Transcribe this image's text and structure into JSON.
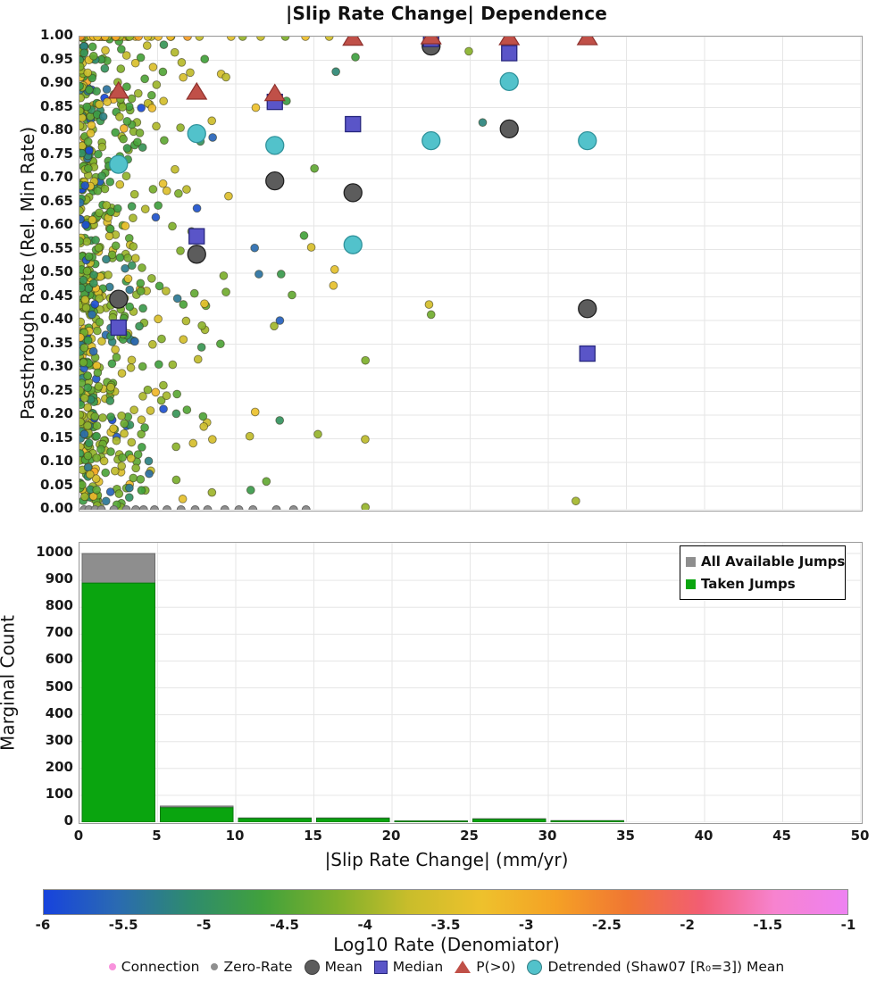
{
  "title": "|Slip Rate Change| Dependence",
  "chart_data": [
    {
      "type": "scatter",
      "title": "|Slip Rate Change| Dependence",
      "xlabel": "|Slip Rate Change| (mm/yr)",
      "ylabel": "Passthrough Rate (Rel. Min Rate)",
      "xlim": [
        0,
        50
      ],
      "ylim": [
        0.0,
        1.0
      ],
      "x_ticks": [
        0,
        5,
        10,
        15,
        20,
        25,
        30,
        35,
        40,
        45,
        50
      ],
      "y_tick_labels": [
        "0.00",
        "0.05",
        "0.10",
        "0.15",
        "0.20",
        "0.25",
        "0.30",
        "0.35",
        "0.40",
        "0.45",
        "0.50",
        "0.55",
        "0.60",
        "0.65",
        "0.70",
        "0.75",
        "0.80",
        "0.85",
        "0.90",
        "0.95",
        "1.00"
      ],
      "grid": true,
      "bin_centers": [
        2.5,
        7.5,
        12.5,
        17.5,
        22.5,
        27.5,
        32.5
      ],
      "series": [
        {
          "name": "Mean",
          "marker": "circle",
          "fill": "#5c5c5c",
          "stroke": "#1f1f1f",
          "x": [
            2.5,
            7.5,
            12.5,
            17.5,
            22.5,
            27.5,
            32.5
          ],
          "y": [
            0.445,
            0.54,
            0.695,
            0.67,
            0.98,
            0.805,
            0.425
          ]
        },
        {
          "name": "Median",
          "marker": "square",
          "fill": "#5a55c8",
          "stroke": "#26267e",
          "x": [
            2.5,
            7.5,
            12.5,
            17.5,
            22.5,
            27.5,
            32.5
          ],
          "y": [
            0.385,
            0.578,
            0.862,
            0.815,
            0.995,
            0.965,
            0.33
          ]
        },
        {
          "name": "P(>0)",
          "marker": "triangle",
          "fill": "#c05048",
          "stroke": "#8e302c",
          "x": [
            2.5,
            7.5,
            12.5,
            17.5,
            22.5,
            27.5,
            32.5
          ],
          "y": [
            0.885,
            0.883,
            0.88,
            0.997,
            1.0,
            0.998,
            0.998
          ]
        },
        {
          "name": "Detrended (Shaw07 [R₀=3]) Mean",
          "marker": "circle",
          "fill": "#52c2cb",
          "stroke": "#2f929b",
          "x": [
            2.5,
            7.5,
            12.5,
            17.5,
            22.5,
            27.5,
            32.5
          ],
          "y": [
            0.73,
            0.795,
            0.77,
            0.56,
            0.78,
            0.905,
            0.78
          ]
        },
        {
          "name": "Zero-Rate",
          "marker": "small-circle",
          "fill": "#8f8f8f",
          "stroke": "#636363",
          "x": [
            0.3,
            0.6,
            1.0,
            1.4,
            2.2,
            3.0,
            3.6,
            4.1,
            4.8,
            5.6,
            6.5,
            7.4,
            8.2,
            9.3,
            10.2,
            11.1,
            12.6,
            13.7,
            14.5
          ],
          "y": [
            0,
            0,
            0,
            0,
            0,
            0,
            0,
            0,
            0,
            0,
            0,
            0,
            0,
            0,
            0,
            0,
            0,
            0,
            0
          ]
        }
      ],
      "background_scatter": {
        "comment": "dense cloud of connection points, colored by Log10 Rate via colorbar; generated deterministically",
        "seed": 7,
        "dot_radius": 4.4,
        "main_count": 520,
        "edge_count": 150,
        "top_row_count": 46,
        "x_scale_main": 2.3,
        "x_scale_edge": 0.45,
        "x_scale_top": 4.5,
        "color_center_main": -4.15,
        "color_center_edge": -4.6,
        "color_center_top": -3.55
      }
    },
    {
      "type": "bar",
      "ylabel": "Marginal Count",
      "xlabel": "|Slip Rate Change| (mm/yr)",
      "bin_edges": [
        0,
        5,
        10,
        15,
        20,
        25,
        30,
        35
      ],
      "ylim": [
        0,
        1040
      ],
      "y_ticks": [
        0,
        100,
        200,
        300,
        400,
        500,
        600,
        700,
        800,
        900,
        1000
      ],
      "x_ticks": [
        0,
        5,
        10,
        15,
        20,
        25,
        30,
        35,
        40,
        45,
        50
      ],
      "grid": true,
      "legend_position": "upper right",
      "series": [
        {
          "name": "All Available Jumps",
          "color": "#8e8e8e",
          "edge": "#6b6b6b",
          "values": [
            1000,
            60,
            16,
            16,
            5,
            13,
            6
          ]
        },
        {
          "name": "Taken Jumps",
          "color": "#0aa50f",
          "edge": "#067a0b",
          "values": [
            890,
            54,
            14,
            14,
            4,
            11,
            5
          ]
        }
      ]
    },
    {
      "type": "colorbar",
      "label": "Log10 Rate (Denomiator)",
      "tick_labels": [
        "-6",
        "-5.5",
        "-5",
        "-4.5",
        "-4",
        "-3.5",
        "-3",
        "-2.5",
        "-2",
        "-1.5",
        "-1"
      ],
      "range": [
        -6,
        -1
      ],
      "gradient": [
        "#1743dd",
        "#2a6ab2",
        "#2e8b6e",
        "#41a13c",
        "#7fb02b",
        "#c9bd2b",
        "#eec12c",
        "#f5a125",
        "#f07633",
        "#f25d74",
        "#f783cf",
        "#ee82f2"
      ]
    }
  ],
  "marker_legend": {
    "items": [
      {
        "label": "Connection",
        "marker": "small-dot",
        "color": "#f892dc"
      },
      {
        "label": "Zero-Rate",
        "marker": "small-dot",
        "color": "#8f8f8f"
      },
      {
        "label": "Mean",
        "marker": "circle",
        "color": "#5c5c5c"
      },
      {
        "label": "Median",
        "marker": "square",
        "color": "#5a55c8"
      },
      {
        "label": "P(>0)",
        "marker": "triangle",
        "color": "#c05048"
      },
      {
        "label": "Detrended (Shaw07 [R₀=3]) Mean",
        "marker": "circle",
        "color": "#52c2cb"
      }
    ]
  }
}
